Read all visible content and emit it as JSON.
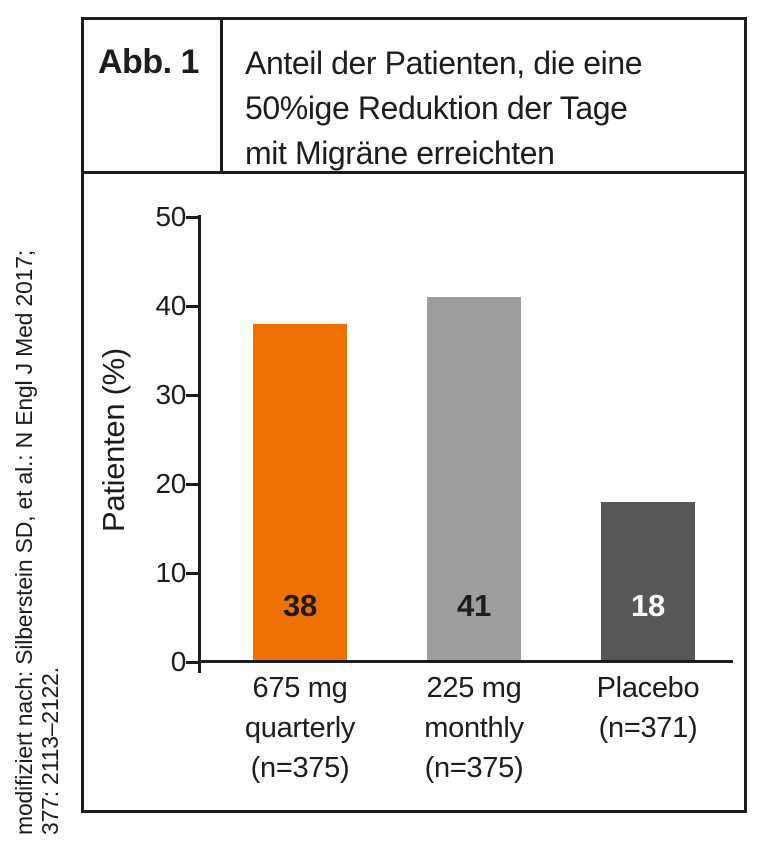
{
  "figure": {
    "label": "Abb. 1",
    "title_lines": [
      "Anteil der Patienten, die eine",
      "50%ige Reduktion der Tage",
      "mit Migräne erreichten"
    ]
  },
  "source_note": {
    "line1": "modifiziert nach: Silberstein SD, et al.: N Engl J Med 2017;",
    "line2": "377: 2113–2122."
  },
  "chart_data": {
    "type": "bar",
    "title": "Anteil der Patienten, die eine 50%ige Reduktion der Tage mit Migräne erreichten",
    "xlabel": "",
    "ylabel": "Patienten (%)",
    "ylim": [
      0,
      50
    ],
    "yticks": [
      0,
      10,
      20,
      30,
      40,
      50
    ],
    "grid": false,
    "legend": false,
    "categories": [
      "675 mg quarterly (n=375)",
      "225 mg monthly (n=375)",
      "Placebo (n=371)"
    ],
    "category_label_lines": [
      [
        "675 mg",
        "quarterly",
        "(n=375)"
      ],
      [
        "225 mg",
        "monthly",
        "(n=375)"
      ],
      [
        "Placebo",
        "(n=371)"
      ]
    ],
    "keys": [
      "675mg-quarterly",
      "225mg-monthly",
      "placebo"
    ],
    "values": [
      38,
      41,
      18
    ],
    "bar_colors": [
      "#ee7101",
      "#9d9d9c",
      "#575756"
    ],
    "value_label_colors": [
      "#1d1d1b",
      "#1d1d1b",
      "#ffffff"
    ]
  },
  "colors": {
    "accent_orange": "#ee7101",
    "light_gray": "#9d9d9c",
    "dark_gray": "#575756",
    "ink": "#1d1d1b",
    "background": "#ffffff"
  }
}
